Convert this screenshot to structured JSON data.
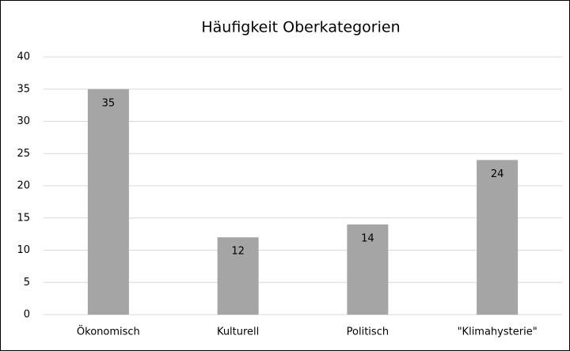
{
  "chart_data": {
    "type": "bar",
    "title": "Häufigkeit Oberkategorien",
    "categories": [
      "Ökonomisch",
      "Kulturell",
      "Politisch",
      "\"Klimahysterie\""
    ],
    "values": [
      35,
      12,
      14,
      24
    ],
    "color": "#a5a5a5",
    "ylim": [
      0,
      40
    ],
    "yticks": [
      0,
      5,
      10,
      15,
      20,
      25,
      30,
      35,
      40
    ],
    "grid": true
  }
}
